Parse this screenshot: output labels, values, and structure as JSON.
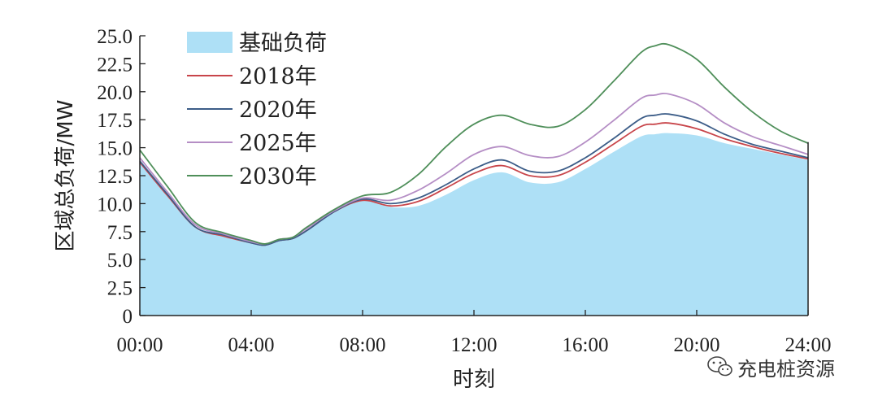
{
  "chart_data": {
    "type": "area",
    "xlabel": "时刻",
    "ylabel": "区域总负荷/MW",
    "xlim": [
      0,
      24
    ],
    "ylim": [
      0,
      25
    ],
    "x_ticks": [
      {
        "value": 0,
        "label": "00:00"
      },
      {
        "value": 4,
        "label": "04:00"
      },
      {
        "value": 8,
        "label": "08:00"
      },
      {
        "value": 12,
        "label": "12:00"
      },
      {
        "value": 16,
        "label": "16:00"
      },
      {
        "value": 20,
        "label": "20:00"
      },
      {
        "value": 24,
        "label": "24:00"
      }
    ],
    "y_ticks": [
      {
        "value": 0,
        "label": "0"
      },
      {
        "value": 2.5,
        "label": "2.5"
      },
      {
        "value": 5,
        "label": "5.0"
      },
      {
        "value": 7.5,
        "label": "7.5"
      },
      {
        "value": 10,
        "label": "10.0"
      },
      {
        "value": 12.5,
        "label": "12.5"
      },
      {
        "value": 15,
        "label": "15.0"
      },
      {
        "value": 17.5,
        "label": "17.5"
      },
      {
        "value": 20,
        "label": "20.0"
      },
      {
        "value": 22.5,
        "label": "22.5"
      },
      {
        "value": 25,
        "label": "25.0"
      }
    ],
    "grid": false,
    "legend_position": "top-left",
    "x": [
      0,
      1,
      2,
      3,
      4,
      4.5,
      5,
      5.5,
      6,
      7,
      8,
      9,
      10,
      11,
      12,
      13,
      14,
      15,
      16,
      17,
      18,
      18.5,
      19,
      20,
      21,
      22,
      23,
      24
    ],
    "series": [
      {
        "name": "基础负荷",
        "kind": "area",
        "color": "#aee0f6",
        "values": [
          13.6,
          10.6,
          7.8,
          7.1,
          6.5,
          6.3,
          6.7,
          6.9,
          7.6,
          9.2,
          10.3,
          9.7,
          9.8,
          10.8,
          12.1,
          12.8,
          11.9,
          11.9,
          13.1,
          14.6,
          16.0,
          16.2,
          16.3,
          16.1,
          15.4,
          14.9,
          14.4,
          13.9
        ]
      },
      {
        "name": "2018年",
        "kind": "line",
        "color": "#c8454a",
        "values": [
          13.7,
          10.7,
          7.9,
          7.1,
          6.5,
          6.3,
          6.7,
          6.9,
          7.6,
          9.3,
          10.3,
          9.8,
          10.2,
          11.4,
          12.7,
          13.4,
          12.5,
          12.5,
          13.7,
          15.3,
          16.9,
          17.1,
          17.2,
          16.7,
          15.8,
          15.1,
          14.5,
          14.0
        ]
      },
      {
        "name": "2020年",
        "kind": "line",
        "color": "#3c5d88",
        "values": [
          13.8,
          10.8,
          7.9,
          7.2,
          6.5,
          6.3,
          6.7,
          6.9,
          7.6,
          9.3,
          10.4,
          10.0,
          10.5,
          11.7,
          13.1,
          13.9,
          12.9,
          12.9,
          14.1,
          15.8,
          17.6,
          17.9,
          18.0,
          17.4,
          16.2,
          15.3,
          14.7,
          14.1
        ]
      },
      {
        "name": "2025年",
        "kind": "line",
        "color": "#b58ec5",
        "values": [
          14.1,
          11.0,
          8.1,
          7.3,
          6.6,
          6.4,
          6.8,
          7.0,
          7.8,
          9.4,
          10.5,
          10.3,
          11.2,
          12.7,
          14.4,
          15.1,
          14.3,
          14.2,
          15.5,
          17.4,
          19.4,
          19.7,
          19.8,
          18.9,
          17.2,
          16.0,
          15.2,
          14.4
        ]
      },
      {
        "name": "2030年",
        "kind": "line",
        "color": "#4f8f5a",
        "values": [
          14.8,
          11.5,
          8.3,
          7.4,
          6.7,
          6.4,
          6.8,
          7.0,
          7.9,
          9.5,
          10.7,
          11.0,
          12.6,
          15.1,
          17.1,
          17.9,
          17.1,
          16.9,
          18.4,
          20.9,
          23.5,
          24.1,
          24.2,
          22.9,
          20.4,
          18.2,
          16.5,
          15.4
        ]
      }
    ]
  },
  "watermark": {
    "text": "充电桩资源",
    "icon": "wechat-icon"
  }
}
